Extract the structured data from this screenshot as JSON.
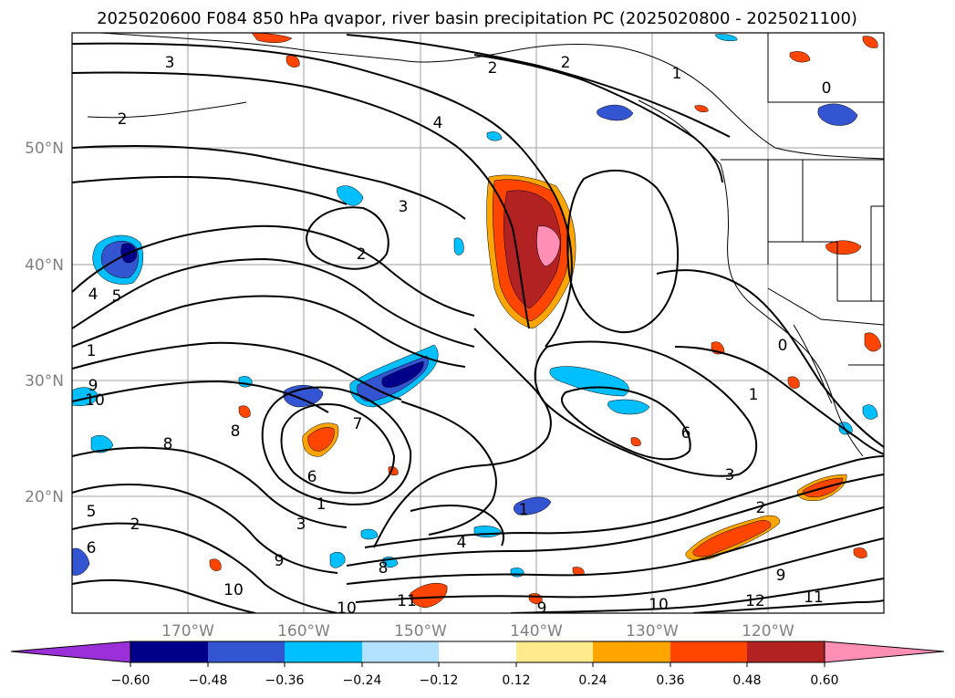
{
  "title": "2025020600 F084 850 hPa qvapor, river basin precipitation PC (2025020800 - 2025021100)",
  "map": {
    "lat_labels": [
      "50°N",
      "40°N",
      "30°N",
      "20°N"
    ],
    "lon_labels": [
      "170°W",
      "160°W",
      "150°W",
      "140°W",
      "130°W",
      "120°W"
    ],
    "contour_labels": [
      "3",
      "2",
      "2",
      "1",
      "0",
      "4",
      "3",
      "2",
      "2",
      "4",
      "5",
      "1",
      "9",
      "10",
      "8",
      "8",
      "7",
      "6",
      "1",
      "3",
      "2",
      "1",
      "5",
      "6",
      "9",
      "8",
      "10",
      "10",
      "11",
      "9",
      "10",
      "12",
      "11",
      "9",
      "6",
      "3",
      "4",
      "1",
      "0",
      "2"
    ],
    "shading_colors": {
      "negative": [
        "#9b30d9",
        "#00008b",
        "#3455d2",
        "#00bfff",
        "#b2e2ff"
      ],
      "positive": [
        "#ffeb8c",
        "#ffa500",
        "#ff4500",
        "#b22222",
        "#ff8fb5"
      ]
    }
  },
  "colorbar": {
    "ticks": [
      "−0.60",
      "−0.48",
      "−0.36",
      "−0.24",
      "−0.12",
      "0.12",
      "0.24",
      "0.36",
      "0.48",
      "0.60"
    ],
    "colors": [
      "#9b30d9",
      "#00008b",
      "#3455d2",
      "#00bfff",
      "#b2e2ff",
      "#ffffff",
      "#ffeb8c",
      "#ffa500",
      "#ff4500",
      "#b22222",
      "#ff8fb5"
    ]
  }
}
